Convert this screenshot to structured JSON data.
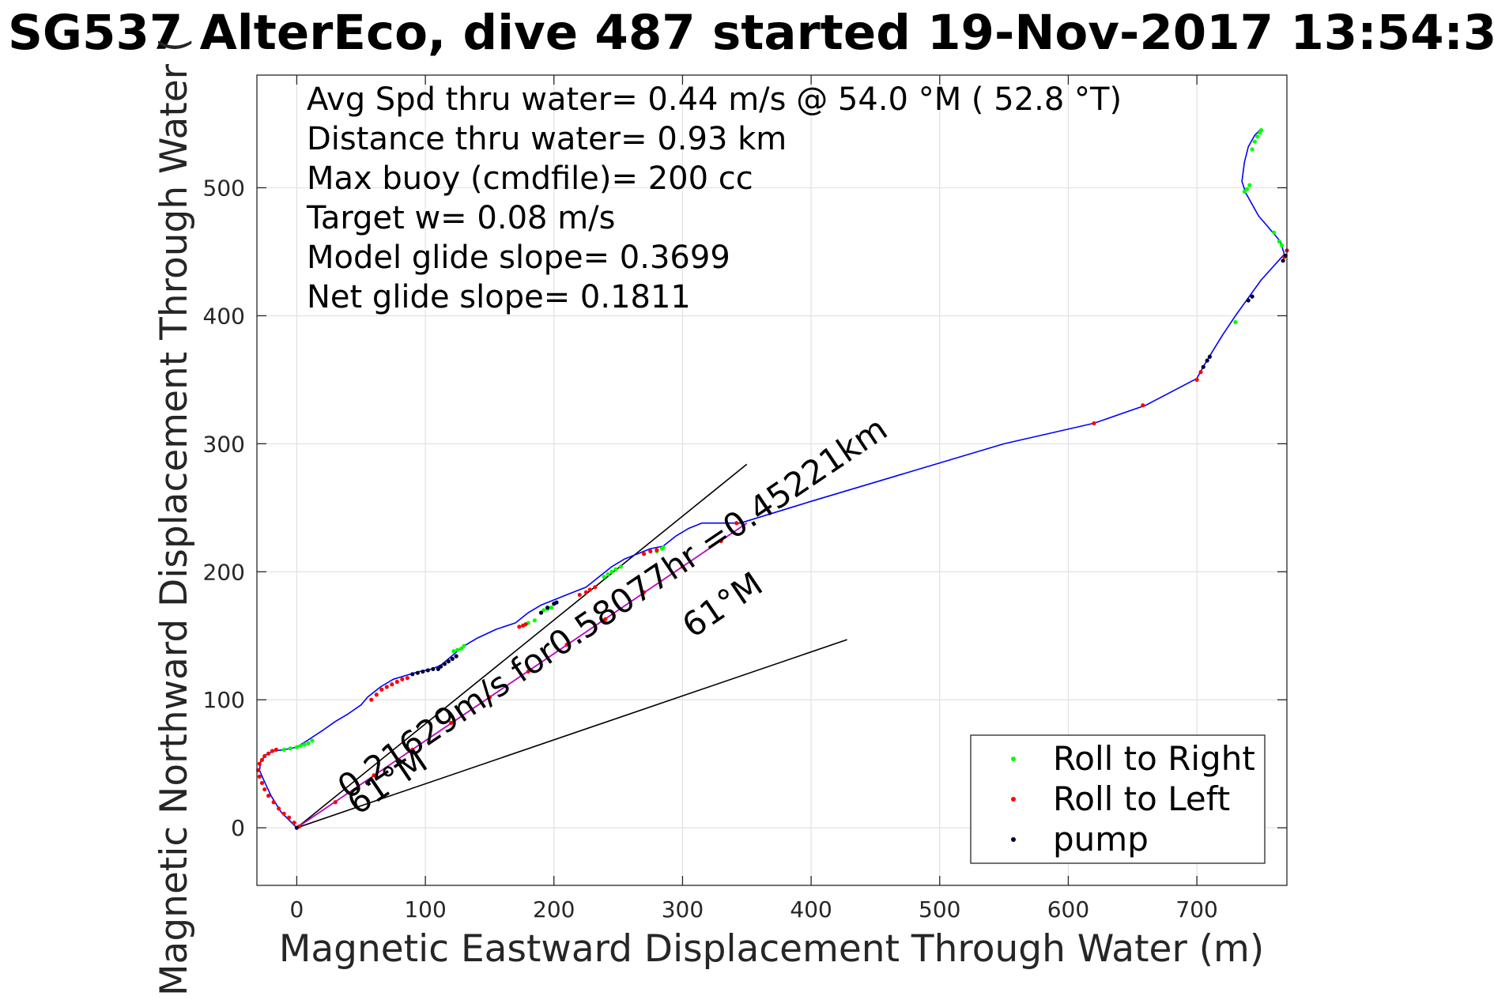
{
  "chart_data": {
    "type": "scatter",
    "title": "SG537 AlterEco, dive 487 started 19-Nov-2017 13:54:3",
    "xlabel": "Magnetic Eastward Displacement Through Water (m)",
    "ylabel": "Magnetic Northward Displacement Through Water (",
    "xlim": [
      -31,
      770
    ],
    "ylim": [
      -45,
      588
    ],
    "xticks": [
      0,
      100,
      200,
      300,
      400,
      500,
      600,
      700
    ],
    "yticks": [
      0,
      100,
      200,
      300,
      400,
      500
    ],
    "grid": true,
    "legend_position": "bottom-right",
    "annotations": [
      "Avg Spd thru water=  0.44 m/s @  54.0 °M ( 52.8 °T)",
      "Distance thru water=  0.93 km",
      "Max buoy (cmdfile)= 200 cc",
      "Target w= 0.08 m/s",
      "Model glide slope= 0.3699",
      "Net glide slope= 0.1811"
    ],
    "current_label": "0.21629m/s for0.58077hr =0.45221km",
    "heading_labels": [
      "61°M",
      "61°M"
    ],
    "heading_lines": [
      {
        "x": [
          0,
          350
        ],
        "y": [
          0,
          284
        ]
      },
      {
        "x": [
          0,
          428
        ],
        "y": [
          0,
          147
        ]
      }
    ],
    "current_vector": {
      "x": [
        0,
        350
      ],
      "y": [
        0,
        238
      ]
    },
    "track": {
      "color": "#0000ff",
      "x": [
        0,
        -5,
        -12,
        -20,
        -26,
        -29,
        -28,
        -24,
        -18,
        -10,
        0,
        8,
        20,
        30,
        40,
        50,
        55,
        65,
        75,
        85,
        95,
        105,
        112,
        118,
        125,
        130,
        140,
        155,
        170,
        180,
        190,
        200,
        210,
        225,
        235,
        245,
        255,
        265,
        275,
        285,
        295,
        305,
        315,
        330,
        345,
        400,
        500,
        550,
        620,
        660,
        700,
        706,
        712,
        720,
        730,
        750,
        768,
        765,
        748,
        738,
        735,
        737,
        740,
        745,
        750
      ],
      "y": [
        0,
        5,
        12,
        25,
        38,
        45,
        52,
        57,
        60,
        61,
        63,
        68,
        76,
        83,
        89,
        96,
        102,
        110,
        116,
        119,
        122,
        124,
        127,
        132,
        138,
        142,
        148,
        155,
        160,
        168,
        174,
        178,
        182,
        188,
        196,
        204,
        210,
        214,
        218,
        220,
        228,
        234,
        238,
        238,
        238,
        255,
        285,
        300,
        316,
        330,
        351,
        362,
        372,
        385,
        400,
        428,
        448,
        458,
        478,
        496,
        505,
        520,
        532,
        541,
        546
      ]
    },
    "current_track": {
      "color": "#cc00cc",
      "x": [
        0,
        350
      ],
      "y": [
        0,
        238
      ]
    },
    "series": [
      {
        "name": "Roll to Right",
        "color": "#00ff00",
        "x": [
          -10,
          -5,
          0,
          3,
          6,
          9,
          12,
          122,
          125,
          128,
          130,
          176,
          180,
          185,
          190,
          192,
          195,
          198,
          239,
          242,
          245,
          248,
          252,
          280,
          284,
          285,
          730,
          737,
          739,
          741,
          743,
          745,
          747,
          749,
          750,
          760,
          764,
          766
        ],
        "y": [
          61,
          62,
          63,
          64,
          65,
          66,
          68,
          138,
          139,
          140,
          142,
          158,
          160,
          162,
          168,
          170,
          171,
          172,
          196,
          198,
          200,
          202,
          204,
          216,
          218,
          219,
          395,
          497,
          499,
          502,
          530,
          536,
          540,
          543,
          545,
          465,
          458,
          455
        ]
      },
      {
        "name": "Roll to Left",
        "color": "#ff0000",
        "x": [
          2,
          -2,
          -6,
          -10,
          -14,
          -18,
          -22,
          -25,
          -27,
          -29,
          -30,
          -29,
          -27,
          -25,
          -22,
          -19,
          -16,
          58,
          62,
          66,
          70,
          74,
          78,
          82,
          86,
          173,
          176,
          178,
          220,
          225,
          228,
          232,
          270,
          275,
          280,
          342,
          620,
          658,
          700,
          703,
          768,
          770,
          30,
          60,
          90,
          120,
          150,
          180,
          210,
          240,
          270,
          300,
          330
        ],
        "y": [
          1,
          4,
          8,
          11,
          15,
          20,
          25,
          30,
          35,
          40,
          45,
          50,
          53,
          56,
          58,
          60,
          61,
          100,
          104,
          108,
          110,
          112,
          114,
          116,
          117,
          157,
          158,
          159,
          182,
          184,
          186,
          188,
          214,
          216,
          217,
          238,
          316,
          330,
          350,
          356,
          446,
          451,
          20,
          41,
          61,
          82,
          102,
          122,
          143,
          163,
          184,
          204,
          224
        ]
      },
      {
        "name": "pump",
        "color": "#000033",
        "x": [
          0,
          90,
          94,
          98,
          102,
          106,
          110,
          112,
          115,
          118,
          121,
          124,
          190,
          195,
          200,
          202,
          705,
          708,
          710,
          740,
          743,
          767,
          769
        ],
        "y": [
          0,
          120,
          121,
          122,
          123,
          124,
          124,
          126,
          128,
          130,
          132,
          134,
          168,
          172,
          175,
          176,
          360,
          365,
          368,
          412,
          415,
          443,
          447
        ]
      }
    ]
  }
}
